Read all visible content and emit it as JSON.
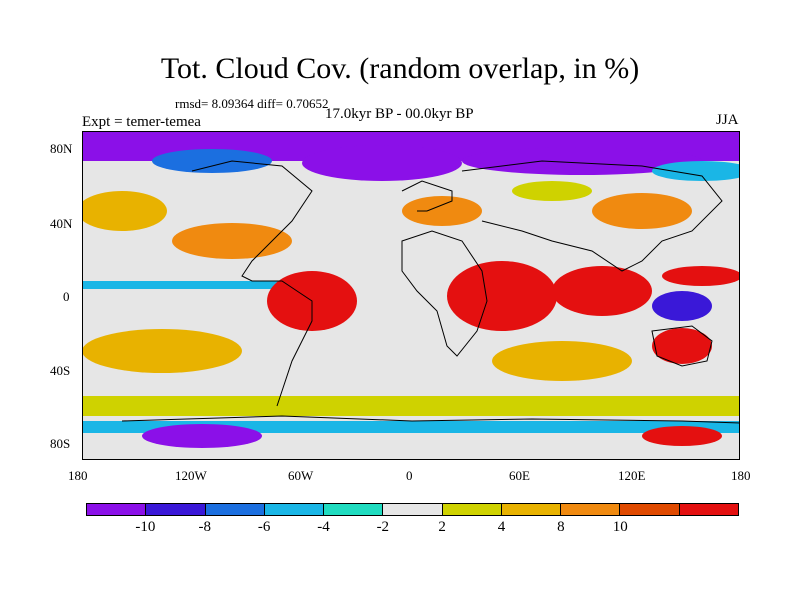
{
  "title": "Tot. Cloud Cov. (random overlap, in %)",
  "stats": "rmsd= 8.09364 diff= 0.70652",
  "experiment": "Expt = temer-temea",
  "period": "17.0kyr BP - 00.0kyr BP",
  "season": "JJA",
  "lat_ticks": [
    "80N",
    "40N",
    "0",
    "40S",
    "80S"
  ],
  "lon_ticks": [
    "180",
    "120W",
    "60W",
    "0",
    "60E",
    "120E",
    "180"
  ],
  "colorbar": {
    "colors": [
      "#8b10e8",
      "#3a18d8",
      "#1b6fe0",
      "#1ab6e6",
      "#20dcc0",
      "#e6e6e6",
      "#cfd200",
      "#e8b200",
      "#f08a10",
      "#e04a00",
      "#e41010"
    ],
    "labels": [
      "-10",
      "-8",
      "-6",
      "-4",
      "-2",
      "2",
      "4",
      "8",
      "10"
    ]
  }
}
